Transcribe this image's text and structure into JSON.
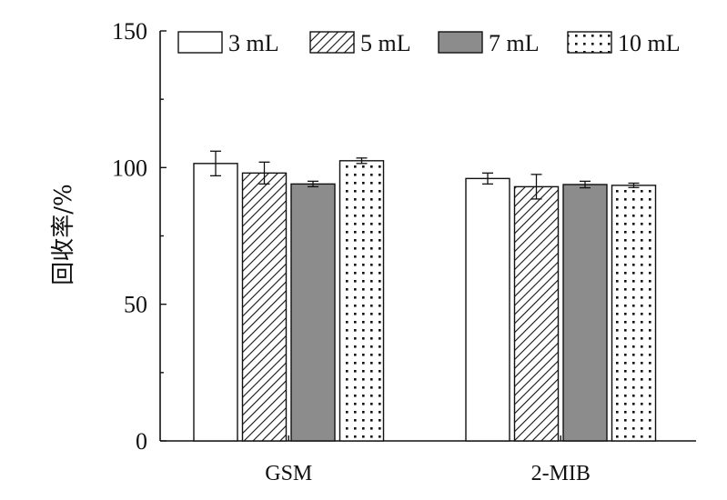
{
  "chart_data": {
    "type": "bar",
    "categories": [
      "GSM",
      "2-MIB"
    ],
    "series": [
      {
        "name": "3 mL",
        "values": [
          101.5,
          96.0
        ],
        "errors": [
          4.5,
          2.0
        ],
        "pattern": "white"
      },
      {
        "name": "5 mL",
        "values": [
          98.0,
          93.0
        ],
        "errors": [
          4.0,
          4.5
        ],
        "pattern": "hatch"
      },
      {
        "name": "7 mL",
        "values": [
          94.0,
          93.8
        ],
        "errors": [
          1.0,
          1.2
        ],
        "pattern": "gray"
      },
      {
        "name": "10 mL",
        "values": [
          102.5,
          93.5
        ],
        "errors": [
          1.0,
          0.8
        ],
        "pattern": "dots"
      }
    ],
    "ylabel": "回收率/%",
    "xlabel": "",
    "ylim": [
      0,
      150
    ],
    "yticks": [
      0,
      50,
      100,
      150
    ],
    "legend_placement": "top",
    "grid": false,
    "colors": {
      "gray": "#8c8c8c",
      "line": "#111111",
      "white": "#ffffff"
    }
  }
}
